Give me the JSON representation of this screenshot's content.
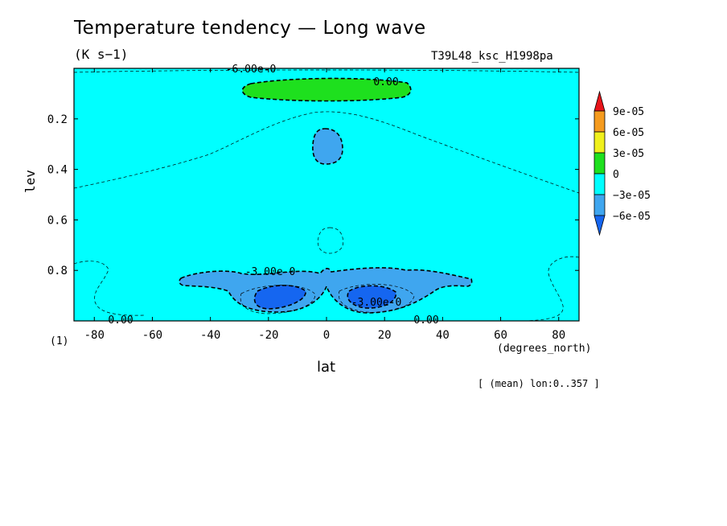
{
  "chart_data": {
    "type": "heatmap",
    "title": "Temperature tendency — Long wave",
    "units": "(K s−1)",
    "run_label": "T39L48_ksc_H1998pa",
    "xlabel": "lat",
    "xunits": "(degrees_north)",
    "ylabel": "lev",
    "bottom_level_label": "(1)",
    "averaging_note": "[ (mean) lon:0..357 ]",
    "xlim": [
      -87,
      87
    ],
    "ylim": [
      1.0,
      0.0
    ],
    "y_inverted": true,
    "x_ticks": [
      -80,
      -60,
      -40,
      -20,
      0,
      20,
      40,
      60,
      80
    ],
    "y_ticks": [
      0.2,
      0.4,
      0.6,
      0.8
    ],
    "colorbar": {
      "levels": [
        "9e-05",
        "6e-05",
        "3e-05",
        "0",
        "−3e-05",
        "−6e-05"
      ],
      "bins": [
        {
          "range": [
            9e-05,
            null
          ],
          "color": "#e8141a"
        },
        {
          "range": [
            6e-05,
            9e-05
          ],
          "color": "#f59b1e"
        },
        {
          "range": [
            3e-05,
            6e-05
          ],
          "color": "#f0f01c"
        },
        {
          "range": [
            0,
            3e-05
          ],
          "color": "#1ee01e"
        },
        {
          "range": [
            -3e-05,
            0
          ],
          "color": "#00ffff"
        },
        {
          "range": [
            -6e-05,
            -3e-05
          ],
          "color": "#3fa6ef"
        },
        {
          "range": [
            null,
            -6e-05
          ],
          "color": "#1566f0"
        }
      ]
    },
    "regions": [
      {
        "name": "positive band near model top",
        "value_range": [
          0,
          3e-05
        ],
        "lat": [
          -28,
          28
        ],
        "lev": [
          0.045,
          0.11
        ],
        "color": "#1ee01e"
      },
      {
        "name": "upper-level negative patch",
        "value_range": [
          -6e-05,
          -3e-05
        ],
        "lat": [
          -4,
          4
        ],
        "lev": [
          0.24,
          0.37
        ],
        "color": "#3fa6ef"
      },
      {
        "name": "lower-level negative band",
        "value_range": [
          -6e-05,
          -3e-05
        ],
        "lat": [
          -50,
          50
        ],
        "lev": [
          0.78,
          0.96
        ],
        "color": "#3fa6ef"
      },
      {
        "name": "minimum south of equator",
        "value_range": [
          null,
          -6e-05
        ],
        "lat": [
          -25,
          -5
        ],
        "lev": [
          0.86,
          0.93
        ],
        "color": "#1566f0"
      },
      {
        "name": "minimum north of equator",
        "value_range": [
          null,
          -6e-05
        ],
        "lat": [
          7,
          25
        ],
        "lev": [
          0.86,
          0.93
        ],
        "color": "#1566f0"
      }
    ],
    "contour_labels": [
      "0.00",
      "-3.00e-0",
      "-3.00e-0",
      "0.00",
      "0.00",
      "-6.00e-0"
    ]
  }
}
